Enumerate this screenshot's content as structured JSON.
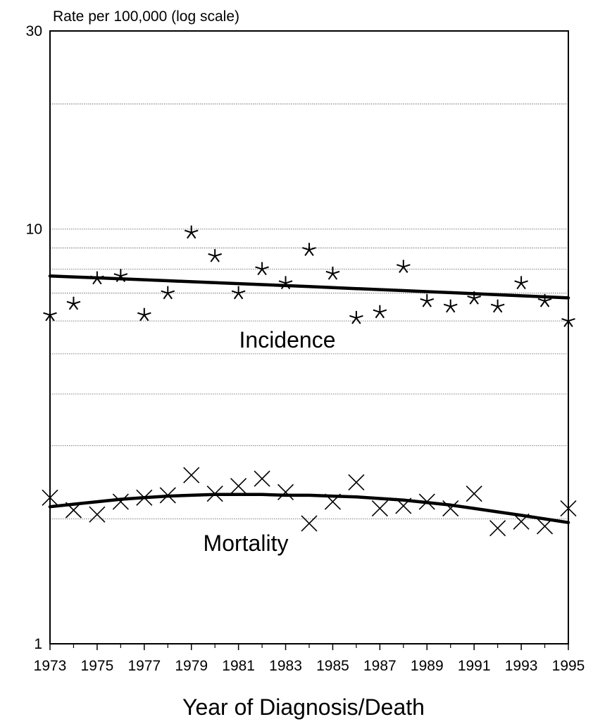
{
  "chart_data": {
    "type": "scatter",
    "ylabel": "Rate per 100,000 (log scale)",
    "xlabel": "Year of Diagnosis/Death",
    "y_scale": "log",
    "ylim": [
      1,
      30
    ],
    "xlim": [
      1973,
      1995
    ],
    "x_tick_labels": [
      "1973",
      "1975",
      "1977",
      "1979",
      "1981",
      "1983",
      "1985",
      "1987",
      "1989",
      "1991",
      "1993",
      "1995"
    ],
    "x_ticks_minor": [
      1974,
      1976,
      1978,
      1980,
      1982,
      1984,
      1986,
      1988,
      1990,
      1992,
      1994
    ],
    "y_tick_labels": [
      "1",
      "10",
      "30"
    ],
    "y_tick_values": [
      1,
      10,
      30
    ],
    "grid_y_values": [
      2,
      3,
      4,
      5,
      6,
      7,
      8,
      9,
      10,
      20
    ],
    "x": [
      1973,
      1974,
      1975,
      1976,
      1977,
      1978,
      1979,
      1980,
      1981,
      1982,
      1983,
      1984,
      1985,
      1986,
      1987,
      1988,
      1989,
      1990,
      1991,
      1992,
      1993,
      1994,
      1995
    ],
    "series": [
      {
        "label": "Incidence",
        "marker": "asterisk",
        "values": [
          6.2,
          6.6,
          7.6,
          7.7,
          6.2,
          7.0,
          9.8,
          8.6,
          7.0,
          8.0,
          7.4,
          8.9,
          7.8,
          6.1,
          6.3,
          8.1,
          6.7,
          6.5,
          6.8,
          6.5,
          7.4,
          6.7,
          6.0
        ],
        "trend": [
          7.7,
          7.66,
          7.62,
          7.58,
          7.54,
          7.5,
          7.46,
          7.42,
          7.38,
          7.34,
          7.3,
          7.26,
          7.22,
          7.18,
          7.14,
          7.1,
          7.06,
          7.02,
          6.98,
          6.94,
          6.9,
          6.86,
          6.82
        ]
      },
      {
        "label": "Mortality",
        "marker": "x",
        "values": [
          2.25,
          2.1,
          2.05,
          2.2,
          2.25,
          2.28,
          2.55,
          2.3,
          2.4,
          2.5,
          2.32,
          1.95,
          2.2,
          2.45,
          2.12,
          2.15,
          2.2,
          2.12,
          2.3,
          1.9,
          1.97,
          1.92,
          2.12
        ],
        "trend": [
          2.14,
          2.17,
          2.2,
          2.23,
          2.25,
          2.27,
          2.28,
          2.29,
          2.29,
          2.29,
          2.28,
          2.28,
          2.27,
          2.26,
          2.24,
          2.22,
          2.19,
          2.16,
          2.12,
          2.08,
          2.04,
          2.0,
          1.96
        ]
      }
    ]
  }
}
